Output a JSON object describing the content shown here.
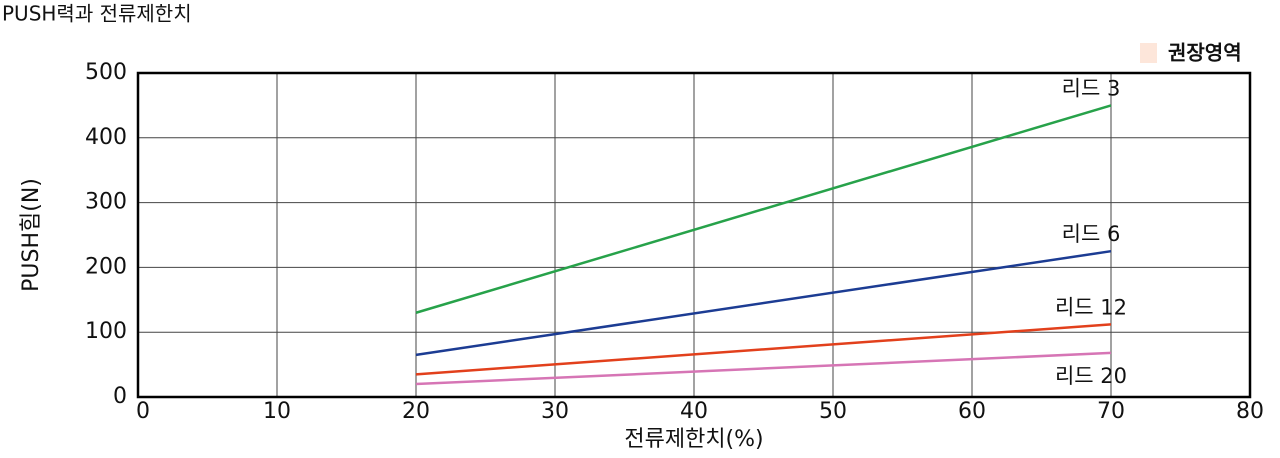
{
  "chart_data": {
    "type": "line",
    "title": "PUSH력과 전류제한치",
    "x_label": "전류제한치(%)",
    "y_label": "PUSH힘(N)",
    "x": [
      20,
      70
    ],
    "series": [
      {
        "name": "리드 3",
        "color": "#27a24a",
        "values": [
          130,
          450
        ]
      },
      {
        "name": "리드 6",
        "color": "#1c3c93",
        "values": [
          65,
          225
        ]
      },
      {
        "name": "리드 12",
        "color": "#e2401c",
        "values": [
          35,
          112
        ]
      },
      {
        "name": "리드 20",
        "color": "#d675b5",
        "values": [
          20,
          68
        ]
      }
    ],
    "legend": {
      "label": "권장영역",
      "color": "#fde6da",
      "position": "upper right"
    },
    "xlim": [
      0,
      80
    ],
    "xticks": [
      0,
      10,
      20,
      30,
      40,
      50,
      60,
      70,
      80
    ],
    "ylim": [
      0,
      500
    ],
    "yticks": [
      0,
      100,
      200,
      300,
      400,
      500
    ],
    "grid": true
  }
}
